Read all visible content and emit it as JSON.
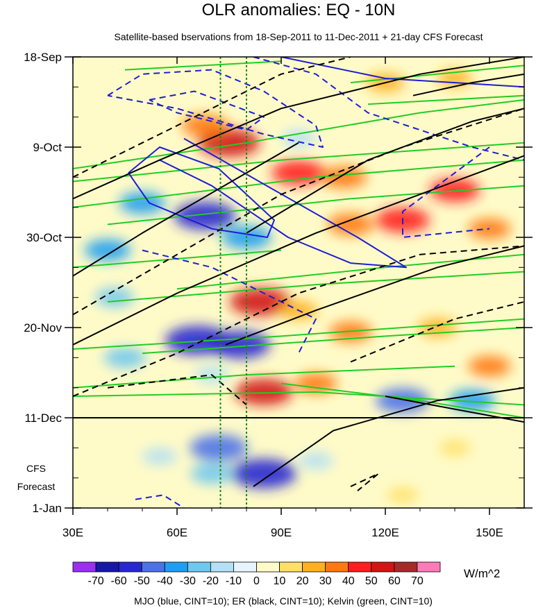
{
  "chart_data": {
    "type": "heatmap",
    "title": "OLR anomalies: EQ - 10N",
    "subtitle": "Satellite-based bservations from 18-Sep-2011 to 11-Dec-2011 + 21-day CFS Forecast",
    "x_ticks": [
      "30E",
      "60E",
      "90E",
      "120E",
      "150E"
    ],
    "x_tick_values": [
      30,
      60,
      90,
      120,
      150
    ],
    "xlim": [
      30,
      160
    ],
    "y_ticks": [
      "18-Sep",
      "9-Oct",
      "30-Oct",
      "20-Nov",
      "11-Dec",
      "1-Jan"
    ],
    "ylim": [
      "2011-09-18",
      "2012-01-01"
    ],
    "forecast_start": "2011-12-11",
    "forecast_label_line1": "CFS",
    "forecast_label_line2": "Forecast",
    "reference_longitudes": [
      72.5,
      80
    ],
    "colorbar": {
      "levels": [
        -70,
        -60,
        -50,
        -40,
        -30,
        -20,
        -10,
        0,
        10,
        20,
        30,
        40,
        50,
        60,
        70
      ],
      "labels": [
        "-70",
        "-60",
        "-50",
        "-40",
        "-30",
        "-20",
        "-10",
        "0",
        "10",
        "20",
        "30",
        "40",
        "50",
        "60",
        "70"
      ],
      "colors": [
        "#9b30f0",
        "#1818a8",
        "#2828d0",
        "#4c72e8",
        "#1e9ef0",
        "#6ec8f0",
        "#b4e0f5",
        "#e6f5fc",
        "#fffbc8",
        "#ffe066",
        "#ffb020",
        "#ff7810",
        "#ff1e1e",
        "#d21414",
        "#a52a2a",
        "#ff7bb8"
      ],
      "unit": "W/m^2"
    },
    "footer": "MJO (blue, CINT=10); ER (black, CINT=10); Kelvin (green, CINT=10)",
    "series_colors": {
      "mjo": "#1c1cd6",
      "er": "#000000",
      "kelvin": "#22cc22"
    },
    "anomaly_regions": [
      {
        "lon": 75,
        "date": "2011-10-08",
        "value": 55
      },
      {
        "lon": 68,
        "date": "2011-10-04",
        "value": 35
      },
      {
        "lon": 95,
        "date": "2011-10-15",
        "value": 45
      },
      {
        "lon": 108,
        "date": "2011-10-16",
        "value": 35
      },
      {
        "lon": 140,
        "date": "2011-10-19",
        "value": 40
      },
      {
        "lon": 125,
        "date": "2011-10-26",
        "value": 45
      },
      {
        "lon": 110,
        "date": "2011-10-27",
        "value": 35
      },
      {
        "lon": 150,
        "date": "2011-10-28",
        "value": 30
      },
      {
        "lon": 68,
        "date": "2011-10-25",
        "value": -55
      },
      {
        "lon": 80,
        "date": "2011-10-30",
        "value": -40
      },
      {
        "lon": 50,
        "date": "2011-10-22",
        "value": -35
      },
      {
        "lon": 40,
        "date": "2011-11-02",
        "value": -35
      },
      {
        "lon": 95,
        "date": "2011-10-07",
        "value": -20
      },
      {
        "lon": 120,
        "date": "2011-09-24",
        "value": 25
      },
      {
        "lon": 140,
        "date": "2011-09-23",
        "value": 20
      },
      {
        "lon": 84,
        "date": "2011-11-14",
        "value": 55
      },
      {
        "lon": 95,
        "date": "2011-11-16",
        "value": 25
      },
      {
        "lon": 66,
        "date": "2011-11-23",
        "value": -60
      },
      {
        "lon": 78,
        "date": "2011-11-24",
        "value": -55
      },
      {
        "lon": 45,
        "date": "2011-11-27",
        "value": -30
      },
      {
        "lon": 42,
        "date": "2011-11-13",
        "value": -25
      },
      {
        "lon": 110,
        "date": "2011-11-21",
        "value": 30
      },
      {
        "lon": 135,
        "date": "2011-11-20",
        "value": 25
      },
      {
        "lon": 85,
        "date": "2011-12-05",
        "value": 50
      },
      {
        "lon": 125,
        "date": "2011-12-07",
        "value": -45
      },
      {
        "lon": 145,
        "date": "2011-12-07",
        "value": -35
      },
      {
        "lon": 100,
        "date": "2011-12-03",
        "value": 30
      },
      {
        "lon": 70,
        "date": "2011-12-01",
        "value": -20
      },
      {
        "lon": 150,
        "date": "2011-11-29",
        "value": 30
      },
      {
        "lon": 72,
        "date": "2011-12-18",
        "value": -50
      },
      {
        "lon": 85,
        "date": "2011-12-24",
        "value": -60
      },
      {
        "lon": 70,
        "date": "2011-12-24",
        "value": -30
      },
      {
        "lon": 55,
        "date": "2011-12-20",
        "value": -20
      },
      {
        "lon": 100,
        "date": "2011-12-21",
        "value": -20
      },
      {
        "lon": 140,
        "date": "2011-12-18",
        "value": 15
      },
      {
        "lon": 125,
        "date": "2011-12-29",
        "value": 15
      }
    ],
    "mjo_contours": [
      {
        "style": "dashed",
        "points": [
          [
            40,
            "2011-09-27"
          ],
          [
            50,
            "2011-09-22"
          ],
          [
            70,
            "2011-09-21"
          ],
          [
            85,
            "2011-09-26"
          ],
          [
            100,
            "2011-10-04"
          ],
          [
            102,
            "2011-10-09"
          ],
          [
            85,
            "2011-10-06"
          ],
          [
            60,
            "2011-09-30"
          ],
          [
            40,
            "2011-09-27"
          ]
        ]
      },
      {
        "style": "dashed",
        "points": [
          [
            52,
            "2011-09-28"
          ],
          [
            65,
            "2011-09-26"
          ],
          [
            85,
            "2011-10-02"
          ],
          [
            80,
            "2011-10-05"
          ],
          [
            60,
            "2011-10-01"
          ],
          [
            52,
            "2011-09-28"
          ]
        ]
      },
      {
        "style": "dashed",
        "points": [
          [
            82,
            "2011-09-18"
          ],
          [
            100,
            "2011-09-22"
          ],
          [
            115,
            "2011-10-01"
          ],
          [
            145,
            "2011-10-09"
          ],
          [
            160,
            "2011-10-12"
          ]
        ]
      },
      {
        "style": "dashed",
        "points": [
          [
            150,
            "2011-10-09"
          ],
          [
            125,
            "2011-10-24"
          ],
          [
            125,
            "2011-10-30"
          ],
          [
            150,
            "2011-10-28"
          ]
        ]
      },
      {
        "style": "solid",
        "points": [
          [
            46,
            "2011-10-15"
          ],
          [
            55,
            "2011-10-09"
          ],
          [
            72,
            "2011-10-14"
          ],
          [
            88,
            "2011-10-26"
          ],
          [
            86,
            "2011-10-30"
          ],
          [
            70,
            "2011-10-28"
          ],
          [
            52,
            "2011-10-22"
          ],
          [
            46,
            "2011-10-15"
          ]
        ]
      },
      {
        "style": "solid",
        "points": [
          [
            55,
            "2011-10-12"
          ],
          [
            70,
            "2011-10-18"
          ],
          [
            92,
            "2011-10-30"
          ],
          [
            110,
            "2011-11-05"
          ],
          [
            126,
            "2011-11-06"
          ],
          [
            112,
            "2011-10-30"
          ],
          [
            88,
            "2011-10-19"
          ],
          [
            62,
            "2011-10-07"
          ]
        ]
      },
      {
        "style": "solid",
        "points": [
          [
            90,
            "2011-09-18"
          ],
          [
            120,
            "2011-09-23"
          ],
          [
            160,
            "2011-09-25"
          ]
        ]
      },
      {
        "style": "dashed",
        "points": [
          [
            50,
            "2011-11-02"
          ],
          [
            70,
            "2011-11-06"
          ],
          [
            100,
            "2011-11-18"
          ],
          [
            95,
            "2011-11-26"
          ]
        ]
      },
      {
        "style": "dashed",
        "points": [
          [
            48,
            "2011-12-30"
          ],
          [
            56,
            "2011-12-29"
          ],
          [
            62,
            "2012-01-01"
          ]
        ]
      }
    ],
    "er_contours": [
      {
        "style": "solid",
        "points": [
          [
            30,
            "2011-11-08"
          ],
          [
            50,
            "2011-10-29"
          ],
          [
            80,
            "2011-10-15"
          ],
          [
            95,
            "2011-10-08"
          ]
        ]
      },
      {
        "style": "solid",
        "points": [
          [
            30,
            "2011-11-24"
          ],
          [
            60,
            "2011-11-12"
          ],
          [
            100,
            "2011-10-29"
          ],
          [
            140,
            "2011-10-17"
          ],
          [
            160,
            "2011-10-11"
          ]
        ]
      },
      {
        "style": "solid",
        "points": [
          [
            30,
            "2011-10-21"
          ],
          [
            55,
            "2011-10-12"
          ],
          [
            90,
            "2011-09-30"
          ],
          [
            130,
            "2011-09-22"
          ],
          [
            160,
            "2011-09-18"
          ]
        ]
      },
      {
        "style": "solid",
        "points": [
          [
            80,
            "2011-10-29"
          ],
          [
            115,
            "2011-10-12"
          ],
          [
            145,
            "2011-10-03"
          ],
          [
            160,
            "2011-09-30"
          ]
        ]
      },
      {
        "style": "solid",
        "points": [
          [
            74,
            "2011-11-24"
          ],
          [
            100,
            "2011-11-16"
          ],
          [
            135,
            "2011-11-06"
          ],
          [
            160,
            "2011-11-01"
          ]
        ]
      },
      {
        "style": "solid",
        "points": [
          [
            82,
            "2011-12-27"
          ],
          [
            105,
            "2011-12-14"
          ],
          [
            135,
            "2011-12-07"
          ],
          [
            160,
            "2011-12-04"
          ]
        ]
      },
      {
        "style": "solid",
        "points": [
          [
            120,
            "2011-12-06"
          ],
          [
            140,
            "2011-12-09"
          ],
          [
            160,
            "2011-12-12"
          ]
        ]
      },
      {
        "style": "solid",
        "points": [
          [
            128,
            "2011-09-27"
          ],
          [
            145,
            "2011-09-24"
          ],
          [
            160,
            "2011-09-22"
          ]
        ]
      },
      {
        "style": "dashed",
        "points": [
          [
            30,
            "2011-10-16"
          ],
          [
            60,
            "2011-10-04"
          ],
          [
            90,
            "2011-09-22"
          ],
          [
            110,
            "2011-09-18"
          ]
        ]
      },
      {
        "style": "dashed",
        "points": [
          [
            30,
            "2011-11-17"
          ],
          [
            60,
            "2011-11-03"
          ],
          [
            90,
            "2011-10-20"
          ],
          [
            125,
            "2011-10-09"
          ],
          [
            160,
            "2011-09-30"
          ]
        ]
      },
      {
        "style": "dashed",
        "points": [
          [
            30,
            "2011-12-06"
          ],
          [
            60,
            "2011-11-26"
          ],
          [
            95,
            "2011-11-12"
          ],
          [
            130,
            "2011-11-03"
          ],
          [
            160,
            "2011-11-01"
          ]
        ]
      },
      {
        "style": "dashed",
        "points": [
          [
            40,
            "2011-12-04"
          ],
          [
            70,
            "2011-12-01"
          ],
          [
            80,
            "2011-12-08"
          ]
        ]
      },
      {
        "style": "dashed",
        "points": [
          [
            110,
            "2011-11-28"
          ],
          [
            140,
            "2011-11-18"
          ],
          [
            160,
            "2011-11-14"
          ]
        ]
      },
      {
        "style": "dashed",
        "points": [
          [
            110,
            "2011-12-27"
          ],
          [
            118,
            "2011-12-24"
          ],
          [
            112,
            "2011-12-28"
          ]
        ]
      }
    ],
    "kelvin_contours": [
      {
        "style": "solid",
        "points": [
          [
            45,
            "2011-09-21"
          ],
          [
            90,
            "2011-09-19"
          ]
        ]
      },
      {
        "style": "solid",
        "points": [
          [
            30,
            "2011-10-14"
          ],
          [
            80,
            "2011-10-08"
          ],
          [
            130,
            "2011-10-01"
          ],
          [
            160,
            "2011-09-28"
          ]
        ]
      },
      {
        "style": "solid",
        "points": [
          [
            30,
            "2011-10-17"
          ],
          [
            90,
            "2011-10-12"
          ],
          [
            160,
            "2011-10-08"
          ]
        ]
      },
      {
        "style": "solid",
        "points": [
          [
            30,
            "2011-10-23"
          ],
          [
            100,
            "2011-10-16"
          ],
          [
            160,
            "2011-10-12"
          ]
        ]
      },
      {
        "style": "solid",
        "points": [
          [
            40,
            "2011-10-27"
          ],
          [
            110,
            "2011-10-21"
          ],
          [
            160,
            "2011-10-18"
          ]
        ]
      },
      {
        "style": "solid",
        "points": [
          [
            30,
            "2011-11-06"
          ],
          [
            90,
            "2011-11-02"
          ]
        ]
      },
      {
        "style": "solid",
        "points": [
          [
            60,
            "2011-11-11"
          ],
          [
            120,
            "2011-11-06"
          ],
          [
            160,
            "2011-11-03"
          ]
        ]
      },
      {
        "style": "solid",
        "points": [
          [
            40,
            "2011-11-14"
          ],
          [
            100,
            "2011-11-10"
          ],
          [
            160,
            "2011-11-07"
          ]
        ]
      },
      {
        "style": "solid",
        "points": [
          [
            30,
            "2011-11-25"
          ],
          [
            90,
            "2011-11-22"
          ],
          [
            160,
            "2011-11-18"
          ]
        ]
      },
      {
        "style": "solid",
        "points": [
          [
            50,
            "2011-11-26"
          ],
          [
            120,
            "2011-11-22"
          ],
          [
            160,
            "2011-11-20"
          ]
        ]
      },
      {
        "style": "solid",
        "points": [
          [
            30,
            "2011-12-04"
          ],
          [
            80,
            "2011-12-01"
          ],
          [
            140,
            "2011-11-29"
          ]
        ]
      },
      {
        "style": "solid",
        "points": [
          [
            30,
            "2011-12-06"
          ],
          [
            100,
            "2011-12-05"
          ],
          [
            160,
            "2011-12-08"
          ]
        ]
      },
      {
        "style": "solid",
        "points": [
          [
            90,
            "2011-12-03"
          ],
          [
            130,
            "2011-12-07"
          ],
          [
            160,
            "2011-12-11"
          ]
        ]
      },
      {
        "style": "solid",
        "points": [
          [
            110,
            "2011-09-24"
          ],
          [
            160,
            "2011-09-20"
          ]
        ]
      },
      {
        "style": "solid",
        "points": [
          [
            115,
            "2011-09-29"
          ],
          [
            160,
            "2011-09-27"
          ]
        ]
      }
    ]
  }
}
